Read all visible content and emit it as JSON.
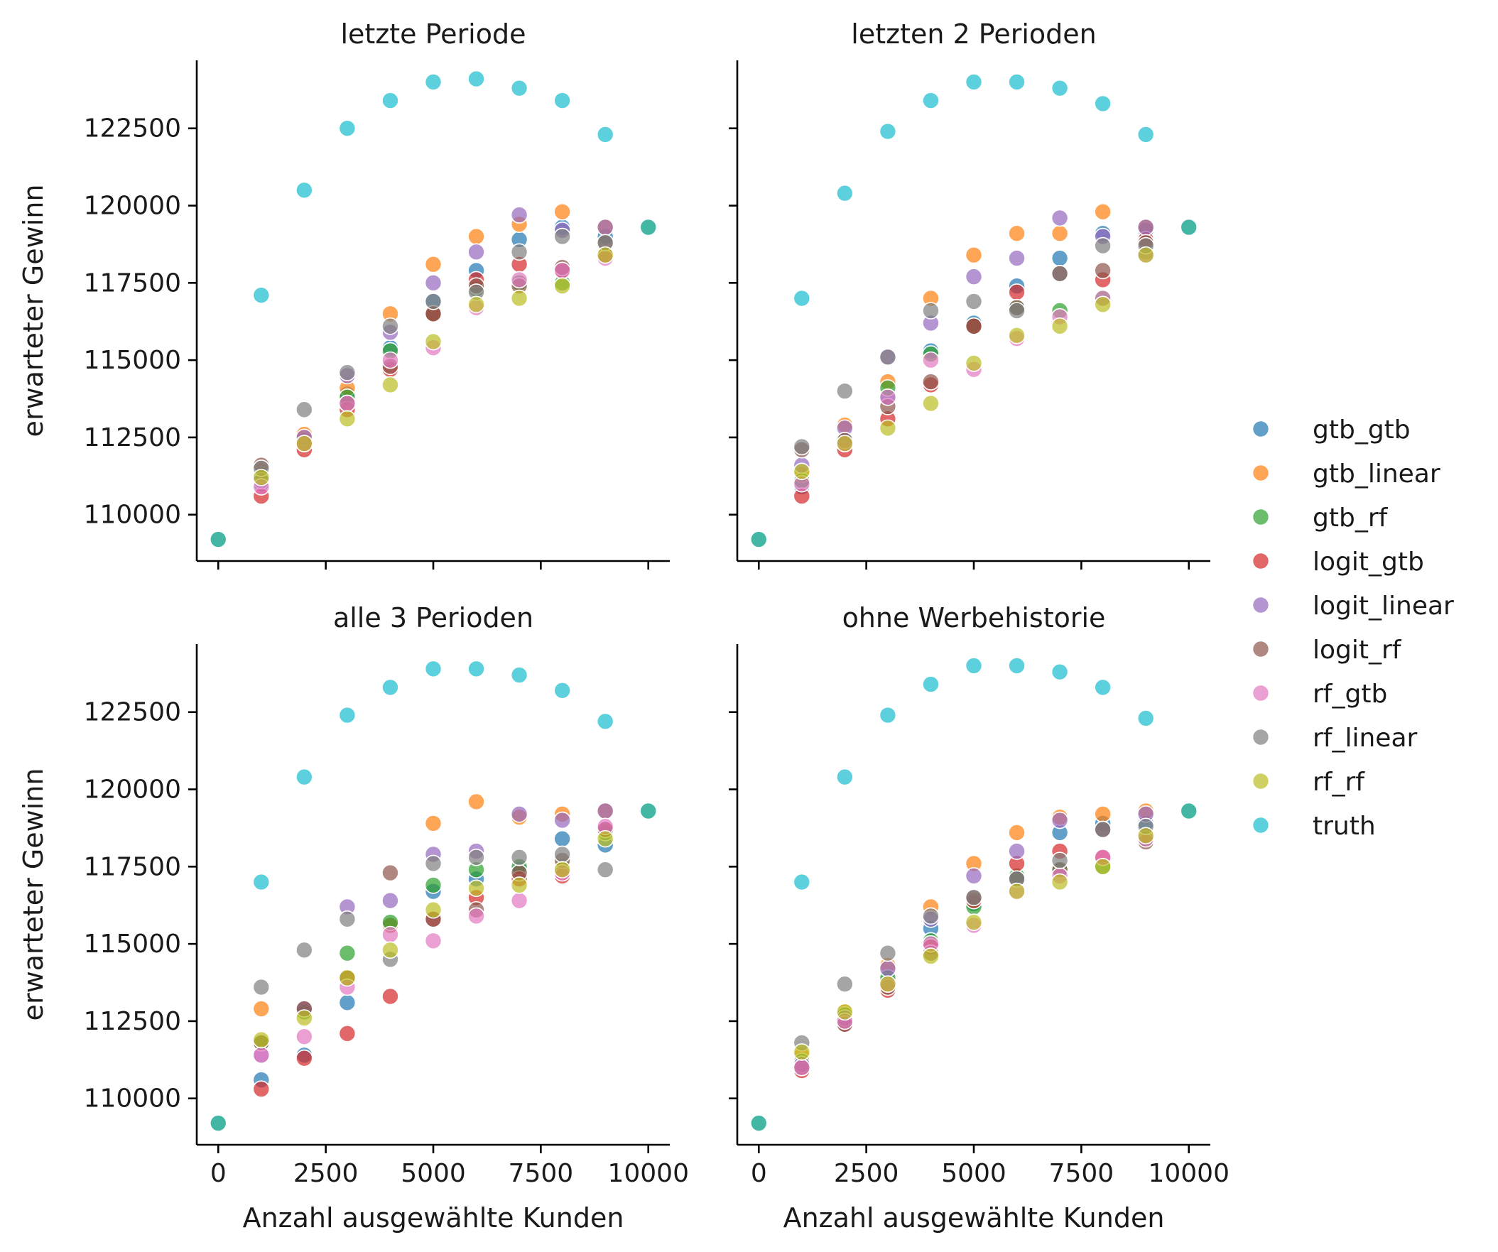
{
  "chart_data": {
    "type": "scatter",
    "shared_x_ticks": [
      "0",
      "2500",
      "5000",
      "7500",
      "10000"
    ],
    "shared_y_ticks": [
      "110000",
      "112500",
      "115000",
      "117500",
      "120000",
      "122500"
    ],
    "xlim": [
      -500,
      10500
    ],
    "ylim": [
      108500,
      124700
    ],
    "xlabel": "Anzahl ausgewählte Kunden",
    "ylabel": "erwarteter Gewinn",
    "legend_position": "right",
    "series_styles": [
      {
        "name": "gtb_gtb",
        "color": "#1f77b4"
      },
      {
        "name": "gtb_linear",
        "color": "#ff7f0e"
      },
      {
        "name": "gtb_rf",
        "color": "#2ca02c"
      },
      {
        "name": "logit_gtb",
        "color": "#d62728"
      },
      {
        "name": "logit_linear",
        "color": "#9467bd"
      },
      {
        "name": "logit_rf",
        "color": "#8c564b"
      },
      {
        "name": "rf_gtb",
        "color": "#e377c2"
      },
      {
        "name": "rf_linear",
        "color": "#7f7f7f"
      },
      {
        "name": "rf_rf",
        "color": "#bcbd22"
      },
      {
        "name": "truth",
        "color": "#17becf"
      }
    ],
    "panels": [
      {
        "title": "letzte Periode",
        "x": [
          0,
          1000,
          2000,
          3000,
          4000,
          5000,
          6000,
          7000,
          8000,
          9000,
          10000
        ],
        "series": [
          {
            "name": "gtb_gtb",
            "values": [
              109200,
              111000,
              112400,
              113900,
              115400,
              116900,
              117900,
              118900,
              119300,
              119000,
              119300
            ]
          },
          {
            "name": "gtb_linear",
            "values": [
              109200,
              111400,
              112600,
              114100,
              116500,
              118100,
              119000,
              119400,
              119800,
              119300,
              119300
            ]
          },
          {
            "name": "gtb_rf",
            "values": [
              109200,
              111300,
              112300,
              113800,
              115300,
              116500,
              117300,
              117500,
              117500,
              118400,
              119300
            ]
          },
          {
            "name": "logit_gtb",
            "values": [
              109200,
              110600,
              112100,
              113400,
              114700,
              116500,
              117600,
              118100,
              117900,
              118400,
              119300
            ]
          },
          {
            "name": "logit_linear",
            "values": [
              109200,
              111100,
              112500,
              114500,
              115900,
              117500,
              118500,
              119700,
              119200,
              119300,
              119300
            ]
          },
          {
            "name": "logit_rf",
            "values": [
              109200,
              111600,
              112300,
              113600,
              114800,
              116500,
              117400,
              117400,
              118000,
              118800,
              119300
            ]
          },
          {
            "name": "rf_gtb",
            "values": [
              109200,
              110900,
              112300,
              113600,
              115000,
              115400,
              116700,
              117600,
              117900,
              118300,
              119300
            ]
          },
          {
            "name": "rf_linear",
            "values": [
              109200,
              111500,
              113400,
              114600,
              116100,
              116900,
              117200,
              118500,
              119000,
              118800,
              119300
            ]
          },
          {
            "name": "rf_rf",
            "values": [
              109200,
              111200,
              112300,
              113100,
              114200,
              115600,
              116800,
              117000,
              117400,
              118400,
              119300
            ]
          },
          {
            "name": "truth",
            "values": [
              109200,
              117100,
              120500,
              122500,
              123400,
              124000,
              124100,
              123800,
              123400,
              122300,
              119300
            ]
          }
        ]
      },
      {
        "title": "letzten 2 Perioden",
        "x": [
          0,
          1000,
          2000,
          3000,
          4000,
          5000,
          6000,
          7000,
          8000,
          9000,
          10000
        ],
        "series": [
          {
            "name": "gtb_gtb",
            "values": [
              109200,
              110900,
              112400,
              113800,
              115300,
              116200,
              117400,
              118300,
              119100,
              119200,
              119300
            ]
          },
          {
            "name": "gtb_linear",
            "values": [
              109200,
              111300,
              112900,
              114300,
              117000,
              118400,
              119100,
              119100,
              119800,
              119300,
              119300
            ]
          },
          {
            "name": "gtb_rf",
            "values": [
              109200,
              111100,
              112400,
              114100,
              115200,
              116100,
              116700,
              116600,
              117000,
              118500,
              119300
            ]
          },
          {
            "name": "logit_gtb",
            "values": [
              109200,
              110600,
              112100,
              113100,
              114200,
              116100,
              117200,
              117800,
              117600,
              118900,
              119300
            ]
          },
          {
            "name": "logit_linear",
            "values": [
              109200,
              111600,
              112800,
              115100,
              116200,
              117700,
              118300,
              119600,
              119000,
              119300,
              119300
            ]
          },
          {
            "name": "logit_rf",
            "values": [
              109200,
              112100,
              112400,
              113500,
              114300,
              116100,
              116700,
              117800,
              117900,
              118800,
              119300
            ]
          },
          {
            "name": "rf_gtb",
            "values": [
              109200,
              111000,
              112300,
              113800,
              115000,
              114700,
              115700,
              116400,
              117000,
              118400,
              119300
            ]
          },
          {
            "name": "rf_linear",
            "values": [
              109200,
              112200,
              114000,
              115100,
              116600,
              116900,
              116600,
              117800,
              118700,
              118700,
              119300
            ]
          },
          {
            "name": "rf_rf",
            "values": [
              109200,
              111400,
              112300,
              112800,
              113600,
              114900,
              115800,
              116100,
              116800,
              118400,
              119300
            ]
          },
          {
            "name": "truth",
            "values": [
              109200,
              117000,
              120400,
              122400,
              123400,
              124000,
              124000,
              123800,
              123300,
              122300,
              119300
            ]
          }
        ]
      },
      {
        "title": "alle 3 Perioden",
        "x": [
          0,
          1000,
          2000,
          3000,
          4000,
          5000,
          6000,
          7000,
          8000,
          9000,
          10000
        ],
        "series": [
          {
            "name": "gtb_gtb",
            "values": [
              109200,
              110600,
              111400,
              113100,
              115600,
              116700,
              117100,
              117400,
              118400,
              118200,
              119300
            ]
          },
          {
            "name": "gtb_linear",
            "values": [
              109200,
              112900,
              112900,
              113900,
              115600,
              118900,
              119600,
              119100,
              119200,
              119300,
              119300
            ]
          },
          {
            "name": "gtb_rf",
            "values": [
              109200,
              111800,
              112800,
              114700,
              115700,
              116900,
              117400,
              117500,
              117500,
              118600,
              119300
            ]
          },
          {
            "name": "logit_gtb",
            "values": [
              109200,
              110300,
              111300,
              112100,
              113300,
              115800,
              116500,
              117100,
              117200,
              118700,
              119300
            ]
          },
          {
            "name": "logit_linear",
            "values": [
              109200,
              111400,
              112900,
              116200,
              116400,
              117900,
              118000,
              119200,
              119000,
              119300,
              119300
            ]
          },
          {
            "name": "logit_rf",
            "values": [
              109200,
              111800,
              112900,
              113900,
              117300,
              115800,
              116100,
              117300,
              117700,
              118700,
              119300
            ]
          },
          {
            "name": "rf_gtb",
            "values": [
              109200,
              111400,
              112000,
              113600,
              115300,
              115100,
              115900,
              116400,
              117300,
              118800,
              119300
            ]
          },
          {
            "name": "rf_linear",
            "values": [
              109200,
              113600,
              114800,
              115800,
              114500,
              117600,
              117800,
              117800,
              117900,
              117400,
              119300
            ]
          },
          {
            "name": "rf_rf",
            "values": [
              109200,
              111900,
              112600,
              113900,
              114800,
              116100,
              116800,
              116900,
              117400,
              118400,
              119300
            ]
          },
          {
            "name": "truth",
            "values": [
              109200,
              117000,
              120400,
              122400,
              123300,
              123900,
              123900,
              123700,
              123200,
              122200,
              119300
            ]
          }
        ]
      },
      {
        "title": "ohne Werbehistorie",
        "x": [
          0,
          1000,
          2000,
          3000,
          4000,
          5000,
          6000,
          7000,
          8000,
          9000,
          10000
        ],
        "series": [
          {
            "name": "gtb_gtb",
            "values": [
              109200,
              111100,
              112500,
              113800,
              115500,
              116300,
              117100,
              118600,
              118900,
              118900,
              119300
            ]
          },
          {
            "name": "gtb_linear",
            "values": [
              109200,
              111400,
              112800,
              114300,
              116200,
              117600,
              118600,
              119100,
              119200,
              119300,
              119300
            ]
          },
          {
            "name": "gtb_rf",
            "values": [
              109200,
              111200,
              112700,
              113900,
              115100,
              116200,
              117200,
              117400,
              117500,
              118400,
              119300
            ]
          },
          {
            "name": "logit_gtb",
            "values": [
              109200,
              110900,
              112400,
              113500,
              114900,
              116400,
              117600,
              118000,
              117800,
              118500,
              119300
            ]
          },
          {
            "name": "logit_linear",
            "values": [
              109200,
              111100,
              112600,
              114200,
              115800,
              117200,
              118000,
              119000,
              118700,
              119200,
              119300
            ]
          },
          {
            "name": "logit_rf",
            "values": [
              109200,
              111000,
              112400,
              113600,
              114700,
              116500,
              117100,
              117400,
              118700,
              118300,
              119300
            ]
          },
          {
            "name": "rf_gtb",
            "values": [
              109200,
              111000,
              112500,
              113700,
              115000,
              115600,
              116700,
              117200,
              117800,
              118400,
              119300
            ]
          },
          {
            "name": "rf_linear",
            "values": [
              109200,
              111800,
              113700,
              114700,
              115900,
              116500,
              117100,
              117700,
              118700,
              118800,
              119300
            ]
          },
          {
            "name": "rf_rf",
            "values": [
              109200,
              111500,
              112800,
              113700,
              114600,
              115700,
              116700,
              117000,
              117500,
              118500,
              119300
            ]
          },
          {
            "name": "truth",
            "values": [
              109200,
              117000,
              120400,
              122400,
              123400,
              124000,
              124000,
              123800,
              123300,
              122300,
              119300
            ]
          }
        ]
      }
    ]
  }
}
